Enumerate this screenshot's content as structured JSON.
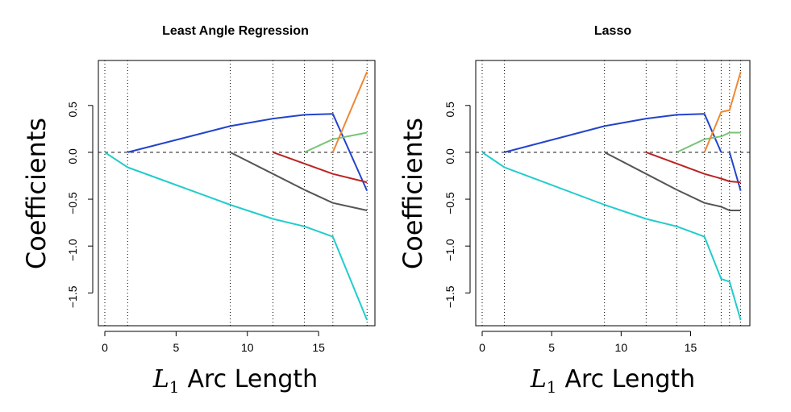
{
  "chart_data": [
    {
      "type": "line",
      "title": "Least Angle Regression",
      "xlabel": "Arc Length",
      "xlabel_symbol": "L",
      "xlabel_subscript": "1",
      "ylabel": "Coefficients",
      "xlim": [
        0,
        18.5
      ],
      "ylim": [
        -1.85,
        0.98
      ],
      "xticks": [
        0,
        5,
        10,
        15
      ],
      "yticks": [
        -1.5,
        -1.0,
        -0.5,
        0.0,
        0.5
      ],
      "ytick_labels": [
        "−1.5",
        "−1.0",
        "−0.5",
        "0.0",
        "0.5"
      ],
      "steps": [
        0,
        1.6,
        8.8,
        11.8,
        14,
        16,
        18.4
      ],
      "zero_line": 0,
      "series": [
        {
          "name": "cyan",
          "color": "#22CCCC",
          "x": [
            0,
            1.6,
            8.8,
            11.8,
            14,
            16,
            18.4
          ],
          "y": [
            0,
            -0.16,
            -0.56,
            -0.71,
            -0.79,
            -0.9,
            -1.79
          ]
        },
        {
          "name": "blue",
          "color": "#2244CC",
          "x": [
            1.6,
            8.8,
            11.8,
            14,
            16,
            18.4
          ],
          "y": [
            0,
            0.28,
            0.36,
            0.4,
            0.41,
            -0.41
          ]
        },
        {
          "name": "gray",
          "color": "#555555",
          "x": [
            8.8,
            11.8,
            14,
            16,
            18.4
          ],
          "y": [
            0,
            -0.23,
            -0.4,
            -0.54,
            -0.62
          ]
        },
        {
          "name": "red",
          "color": "#BB2222",
          "x": [
            11.8,
            14,
            16,
            18.4
          ],
          "y": [
            0,
            -0.12,
            -0.23,
            -0.32
          ]
        },
        {
          "name": "green",
          "color": "#77C477",
          "x": [
            14,
            16,
            18.4
          ],
          "y": [
            0,
            0.14,
            0.21
          ]
        },
        {
          "name": "orange",
          "color": "#EE8833",
          "x": [
            16,
            18.4
          ],
          "y": [
            0,
            0.86
          ]
        }
      ]
    },
    {
      "type": "line",
      "title": "Lasso",
      "xlabel": "Arc Length",
      "xlabel_symbol": "L",
      "xlabel_subscript": "1",
      "ylabel": "Coefficients",
      "xlim": [
        0,
        18.8
      ],
      "ylim": [
        -1.85,
        0.98
      ],
      "xticks": [
        0,
        5,
        10,
        15
      ],
      "yticks": [
        -1.5,
        -1.0,
        -0.5,
        0.0,
        0.5
      ],
      "ytick_labels": [
        "−1.5",
        "−1.0",
        "−0.5",
        "0.0",
        "0.5"
      ],
      "steps": [
        0,
        1.6,
        8.8,
        11.8,
        14,
        16,
        17.2,
        17.8,
        18.6
      ],
      "zero_line": 0,
      "series": [
        {
          "name": "cyan",
          "color": "#22CCCC",
          "x": [
            0,
            1.6,
            8.8,
            11.8,
            14,
            16,
            17.2,
            17.8,
            18.6
          ],
          "y": [
            0,
            -0.16,
            -0.56,
            -0.71,
            -0.79,
            -0.9,
            -1.35,
            -1.38,
            -1.79
          ]
        },
        {
          "name": "blue",
          "color": "#2244CC",
          "x": [
            1.6,
            8.8,
            11.8,
            14,
            16,
            17.2
          ],
          "y": [
            0,
            0.28,
            0.36,
            0.4,
            0.41,
            0
          ]
        },
        {
          "name": "blue-reentry",
          "color": "#2244CC",
          "x": [
            17.8,
            18.6
          ],
          "y": [
            0,
            -0.41
          ]
        },
        {
          "name": "gray",
          "color": "#555555",
          "x": [
            8.8,
            11.8,
            14,
            16,
            17.2,
            17.8,
            18.6
          ],
          "y": [
            0,
            -0.23,
            -0.4,
            -0.54,
            -0.58,
            -0.62,
            -0.62
          ]
        },
        {
          "name": "red",
          "color": "#BB2222",
          "x": [
            11.8,
            14,
            16,
            17.2,
            17.8,
            18.6
          ],
          "y": [
            0,
            -0.12,
            -0.23,
            -0.28,
            -0.31,
            -0.32
          ]
        },
        {
          "name": "green",
          "color": "#77C477",
          "x": [
            14,
            16,
            17.2,
            17.8,
            18.6
          ],
          "y": [
            0,
            0.14,
            0.17,
            0.21,
            0.21
          ]
        },
        {
          "name": "orange",
          "color": "#EE8833",
          "x": [
            16,
            17.2,
            17.8,
            18.6
          ],
          "y": [
            0,
            0.43,
            0.45,
            0.86
          ]
        }
      ]
    }
  ]
}
